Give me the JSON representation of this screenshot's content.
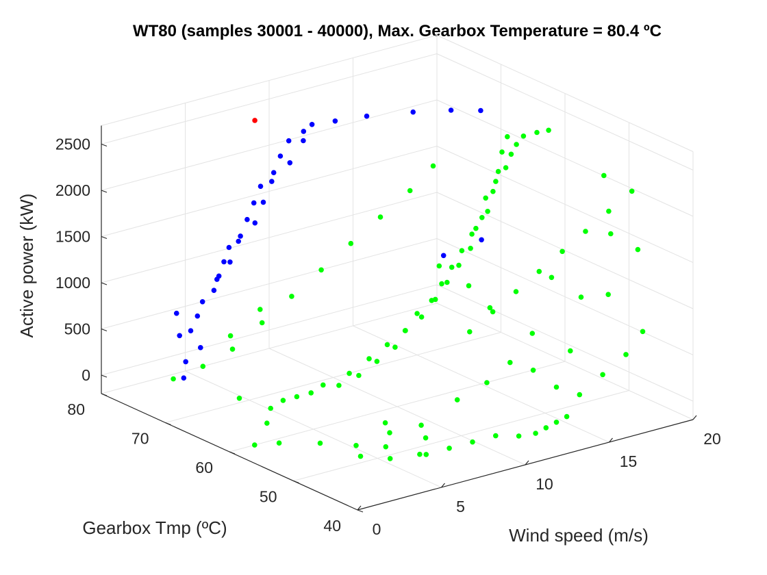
{
  "chart_data": {
    "type": "scatter",
    "title": "WT80 (samples 30001 - 40000), Max. Gearbox Temperature = 80.4 ºC",
    "xlabel": "Wind speed (m/s)",
    "ylabel": "Gearbox Tmp (ºC)",
    "zlabel": "Active power (kW)",
    "xlim": [
      0,
      20
    ],
    "ylim": [
      40,
      80
    ],
    "zlim": [
      -200,
      2700
    ],
    "xticks": [
      "0",
      "5",
      "10",
      "15",
      "20"
    ],
    "yticks": [
      "40",
      "50",
      "60",
      "70",
      "80"
    ],
    "zticks": [
      "0",
      "500",
      "1000",
      "1500",
      "2000",
      "2500"
    ],
    "grid": true,
    "view": "3d",
    "series": [
      {
        "color": "#0000ff",
        "points": [
          [
            3.0,
            75,
            -20
          ],
          [
            3.5,
            76,
            100
          ],
          [
            4.0,
            75,
            260
          ],
          [
            3.8,
            76,
            420
          ],
          [
            4.2,
            76,
            560
          ],
          [
            4.5,
            76,
            700
          ],
          [
            4.8,
            75,
            840
          ],
          [
            5.1,
            75,
            980
          ],
          [
            5.4,
            75,
            1120
          ],
          [
            5.7,
            75,
            1260
          ],
          [
            6.0,
            74,
            1400
          ],
          [
            6.4,
            74,
            1560
          ],
          [
            6.8,
            74,
            1720
          ],
          [
            7.2,
            74,
            1880
          ],
          [
            7.6,
            73,
            2040
          ],
          [
            8.0,
            73,
            2200
          ],
          [
            8.5,
            73,
            2340
          ],
          [
            9.0,
            72,
            2450
          ],
          [
            9.5,
            72,
            2500
          ],
          [
            10.5,
            71,
            2520
          ],
          [
            12.0,
            70,
            2530
          ],
          [
            14.0,
            68,
            2540
          ],
          [
            15.5,
            66,
            2550
          ],
          [
            16.5,
            64,
            2560
          ],
          [
            4.6,
            74,
            1000
          ],
          [
            5.0,
            73,
            1200
          ],
          [
            5.5,
            73,
            1400
          ],
          [
            6.1,
            72,
            1600
          ],
          [
            6.6,
            72,
            1800
          ],
          [
            7.1,
            72,
            2000
          ],
          [
            7.8,
            71,
            2200
          ],
          [
            8.6,
            71,
            2400
          ],
          [
            3.9,
            78,
            300
          ],
          [
            4.1,
            79,
            500
          ],
          [
            12.0,
            58,
            1400
          ],
          [
            13.5,
            56,
            1560
          ]
        ]
      },
      {
        "color": "#ff0000",
        "points": [
          [
            8.0,
            77,
            2460
          ]
        ]
      },
      {
        "color": "#00ff00",
        "points": [
          [
            1.5,
            60,
            -200
          ],
          [
            2.2,
            58,
            -150
          ],
          [
            3.0,
            62,
            -100
          ],
          [
            3.5,
            55,
            -120
          ],
          [
            4.0,
            50,
            -130
          ],
          [
            4.5,
            52,
            -100
          ],
          [
            5.0,
            48,
            -140
          ],
          [
            5.5,
            50,
            -100
          ],
          [
            6.0,
            46,
            -80
          ],
          [
            6.5,
            52,
            -60
          ],
          [
            7.0,
            54,
            -40
          ],
          [
            7.5,
            49,
            -70
          ],
          [
            8.0,
            51,
            -20
          ],
          [
            2.5,
            65,
            100
          ],
          [
            3.2,
            60,
            200
          ],
          [
            4.1,
            58,
            300
          ],
          [
            5.0,
            56,
            400
          ],
          [
            5.8,
            55,
            500
          ],
          [
            6.5,
            54,
            650
          ],
          [
            7.2,
            53,
            800
          ],
          [
            7.8,
            53,
            950
          ],
          [
            8.4,
            52,
            1100
          ],
          [
            9.0,
            52,
            1250
          ],
          [
            9.6,
            52,
            1400
          ],
          [
            10.2,
            52,
            1550
          ],
          [
            10.8,
            52,
            1700
          ],
          [
            11.4,
            52,
            1850
          ],
          [
            12.0,
            52,
            2000
          ],
          [
            12.6,
            53,
            2150
          ],
          [
            13.2,
            53,
            2300
          ],
          [
            13.8,
            53,
            2420
          ],
          [
            14.5,
            54,
            2500
          ],
          [
            15.2,
            55,
            2540
          ],
          [
            16.0,
            56,
            2560
          ],
          [
            16.8,
            56,
            2560
          ],
          [
            17.5,
            56,
            2550
          ],
          [
            3.6,
            63,
            0
          ],
          [
            4.4,
            61,
            150
          ],
          [
            5.2,
            59,
            300
          ],
          [
            6.0,
            57,
            450
          ],
          [
            6.8,
            56,
            600
          ],
          [
            7.5,
            55,
            750
          ],
          [
            8.2,
            54,
            900
          ],
          [
            8.9,
            54,
            1050
          ],
          [
            9.6,
            53,
            1200
          ],
          [
            10.3,
            53,
            1350
          ],
          [
            11.0,
            53,
            1500
          ],
          [
            11.7,
            53,
            1650
          ],
          [
            12.4,
            54,
            1800
          ],
          [
            13.1,
            54,
            1950
          ],
          [
            13.8,
            55,
            2100
          ],
          [
            14.5,
            56,
            2250
          ],
          [
            15.1,
            57,
            2400
          ],
          [
            15.8,
            58,
            2500
          ],
          [
            9.0,
            48,
            300
          ],
          [
            10.0,
            46,
            500
          ],
          [
            11.0,
            45,
            700
          ],
          [
            12.0,
            44,
            600
          ],
          [
            13.0,
            43,
            400
          ],
          [
            14.0,
            42,
            300
          ],
          [
            15.0,
            41,
            500
          ],
          [
            16.0,
            40,
            700
          ],
          [
            17.0,
            40,
            900
          ],
          [
            10.5,
            50,
            900
          ],
          [
            11.5,
            49,
            1100
          ],
          [
            12.5,
            48,
            1300
          ],
          [
            13.5,
            47,
            1500
          ],
          [
            14.5,
            46,
            1700
          ],
          [
            15.5,
            45,
            1900
          ],
          [
            16.5,
            44,
            2100
          ],
          [
            17.5,
            43,
            2300
          ],
          [
            6.0,
            45,
            -50
          ],
          [
            7.0,
            44,
            0
          ],
          [
            8.0,
            43,
            50
          ],
          [
            9.0,
            42,
            100
          ],
          [
            10.0,
            41,
            80
          ],
          [
            11.0,
            41,
            60
          ],
          [
            12.0,
            42,
            40
          ],
          [
            13.0,
            43,
            20
          ],
          [
            14.0,
            44,
            0
          ],
          [
            12.5,
            60,
            1200
          ],
          [
            13.5,
            58,
            1000
          ],
          [
            14.0,
            56,
            800
          ],
          [
            15.0,
            52,
            600
          ],
          [
            16.5,
            50,
            400
          ],
          [
            18.0,
            48,
            1000
          ],
          [
            19.0,
            46,
            1500
          ],
          [
            17.0,
            45,
            1800
          ],
          [
            18.5,
            50,
            2200
          ],
          [
            15.0,
            49,
            1300
          ],
          [
            16.0,
            47,
            1100
          ],
          [
            4.0,
            70,
            400
          ],
          [
            5.0,
            68,
            700
          ],
          [
            6.0,
            66,
            1000
          ],
          [
            7.0,
            64,
            1300
          ],
          [
            8.0,
            62,
            1600
          ],
          [
            9.0,
            60,
            1900
          ],
          [
            10.0,
            58,
            2200
          ],
          [
            11.0,
            57,
            2450
          ],
          [
            3.0,
            72,
            200
          ],
          [
            2.0,
            74,
            50
          ],
          [
            3.5,
            69,
            600
          ],
          [
            4.5,
            67,
            900
          ]
        ]
      }
    ]
  }
}
